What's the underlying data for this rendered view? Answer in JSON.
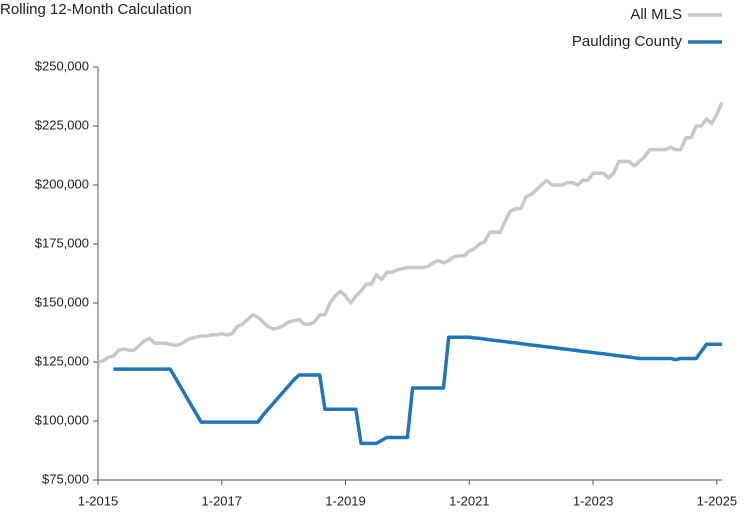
{
  "chart_data": {
    "type": "line",
    "title": "Rolling 12-Month Calculation",
    "x": [
      "1-2015",
      "2-2015",
      "3-2015",
      "4-2015",
      "5-2015",
      "6-2015",
      "7-2015",
      "8-2015",
      "9-2015",
      "10-2015",
      "11-2015",
      "12-2015",
      "1-2016",
      "2-2016",
      "3-2016",
      "4-2016",
      "5-2016",
      "6-2016",
      "7-2016",
      "8-2016",
      "9-2016",
      "10-2016",
      "11-2016",
      "12-2016",
      "1-2017",
      "2-2017",
      "3-2017",
      "4-2017",
      "5-2017",
      "6-2017",
      "7-2017",
      "8-2017",
      "9-2017",
      "10-2017",
      "11-2017",
      "12-2017",
      "1-2018",
      "2-2018",
      "3-2018",
      "4-2018",
      "5-2018",
      "6-2018",
      "7-2018",
      "8-2018",
      "9-2018",
      "10-2018",
      "11-2018",
      "12-2018",
      "1-2019",
      "2-2019",
      "3-2019",
      "4-2019",
      "5-2019",
      "6-2019",
      "7-2019",
      "8-2019",
      "9-2019",
      "10-2019",
      "11-2019",
      "12-2019",
      "1-2020",
      "2-2020",
      "3-2020",
      "4-2020",
      "5-2020",
      "6-2020",
      "7-2020",
      "8-2020",
      "9-2020",
      "10-2020",
      "11-2020",
      "12-2020",
      "1-2021",
      "2-2021",
      "3-2021",
      "4-2021",
      "5-2021",
      "6-2021",
      "7-2021",
      "8-2021",
      "9-2021",
      "10-2021",
      "11-2021",
      "12-2021",
      "1-2022",
      "2-2022",
      "3-2022",
      "4-2022",
      "5-2022",
      "6-2022",
      "7-2022",
      "8-2022",
      "9-2022",
      "10-2022",
      "11-2022",
      "12-2022",
      "1-2023",
      "2-2023",
      "3-2023",
      "4-2023",
      "5-2023",
      "6-2023",
      "7-2023",
      "8-2023",
      "9-2023",
      "10-2023",
      "11-2023",
      "12-2023",
      "1-2024",
      "2-2024",
      "3-2024",
      "4-2024",
      "5-2024",
      "6-2024",
      "7-2024",
      "8-2024",
      "9-2024",
      "10-2024",
      "11-2024",
      "12-2024",
      "1-2025",
      "2-2025"
    ],
    "series": [
      {
        "name": "All MLS",
        "color": "#c8c8c8",
        "values": [
          125000,
          125500,
          127000,
          127500,
          130000,
          130500,
          130000,
          130000,
          132000,
          134000,
          135000,
          133000,
          133000,
          133000,
          132500,
          132000,
          132500,
          134000,
          135000,
          135500,
          136000,
          136000,
          136500,
          136500,
          137000,
          136500,
          137000,
          140000,
          141000,
          143000,
          145000,
          144000,
          142000,
          140000,
          139000,
          139500,
          140500,
          142000,
          142500,
          143000,
          141000,
          141000,
          142000,
          145000,
          145000,
          150000,
          153000,
          155000,
          153000,
          150000,
          153000,
          155000,
          158000,
          158000,
          162000,
          160000,
          163000,
          163000,
          164000,
          164500,
          165000,
          165000,
          165000,
          165000,
          165500,
          167000,
          168000,
          167000,
          168000,
          169500,
          170000,
          170000,
          172000,
          173000,
          175000,
          176000,
          180000,
          180000,
          180000,
          185000,
          189000,
          190000,
          190000,
          195000,
          196000,
          198000,
          200000,
          202000,
          200000,
          200000,
          200000,
          201000,
          201000,
          200000,
          202000,
          202000,
          205000,
          205000,
          205000,
          203000,
          205000,
          210000,
          210000,
          210000,
          208000,
          210000,
          212000,
          215000,
          215000,
          215000,
          215000,
          216000,
          215000,
          215000,
          220000,
          220000,
          225000,
          225000,
          228000,
          226000,
          230000,
          235000
        ]
      },
      {
        "name": "Paulding County",
        "color": "#2275b6",
        "values": [
          null,
          null,
          null,
          122000,
          122000,
          122000,
          122000,
          122000,
          122000,
          122000,
          122000,
          122000,
          122000,
          122000,
          122000,
          118300,
          114500,
          110800,
          107000,
          103300,
          99500,
          99500,
          99500,
          99500,
          99500,
          99500,
          99500,
          99500,
          99500,
          99500,
          99500,
          99500,
          102500,
          105000,
          107500,
          110000,
          112500,
          115000,
          117500,
          119500,
          119500,
          119500,
          119500,
          119500,
          105000,
          105000,
          105000,
          105000,
          105000,
          105000,
          105000,
          90500,
          90500,
          90500,
          90500,
          91800,
          93000,
          93000,
          93000,
          93000,
          93000,
          114000,
          114000,
          114000,
          114000,
          114000,
          114000,
          114000,
          135500,
          135500,
          135500,
          135500,
          135500,
          135200,
          135000,
          134700,
          134400,
          134100,
          133900,
          133600,
          133300,
          133100,
          132800,
          132500,
          132200,
          132000,
          131700,
          131400,
          131200,
          130900,
          130600,
          130400,
          130100,
          129800,
          129500,
          129300,
          129000,
          128700,
          128500,
          128200,
          127900,
          127600,
          127400,
          127100,
          126800,
          126500,
          126500,
          126500,
          126500,
          126500,
          126500,
          126500,
          126000,
          126500,
          126500,
          126500,
          126500,
          129500,
          132500,
          132500,
          132500,
          132500
        ]
      }
    ],
    "xlim": [
      "1-2015",
      "2-2025"
    ],
    "xticks": [
      "1-2015",
      "1-2017",
      "1-2019",
      "1-2021",
      "1-2023",
      "1-2025"
    ],
    "ylim": [
      75000,
      250000
    ],
    "yticks": [
      {
        "value": 75000,
        "label": "$75,000"
      },
      {
        "value": 100000,
        "label": "$100,000"
      },
      {
        "value": 125000,
        "label": "$125,000"
      },
      {
        "value": 150000,
        "label": "$150,000"
      },
      {
        "value": 175000,
        "label": "$175,000"
      },
      {
        "value": 200000,
        "label": "$200,000"
      },
      {
        "value": 225000,
        "label": "$225,000"
      },
      {
        "value": 250000,
        "label": "$250,000"
      }
    ],
    "legend": "top-right",
    "grid": false
  }
}
